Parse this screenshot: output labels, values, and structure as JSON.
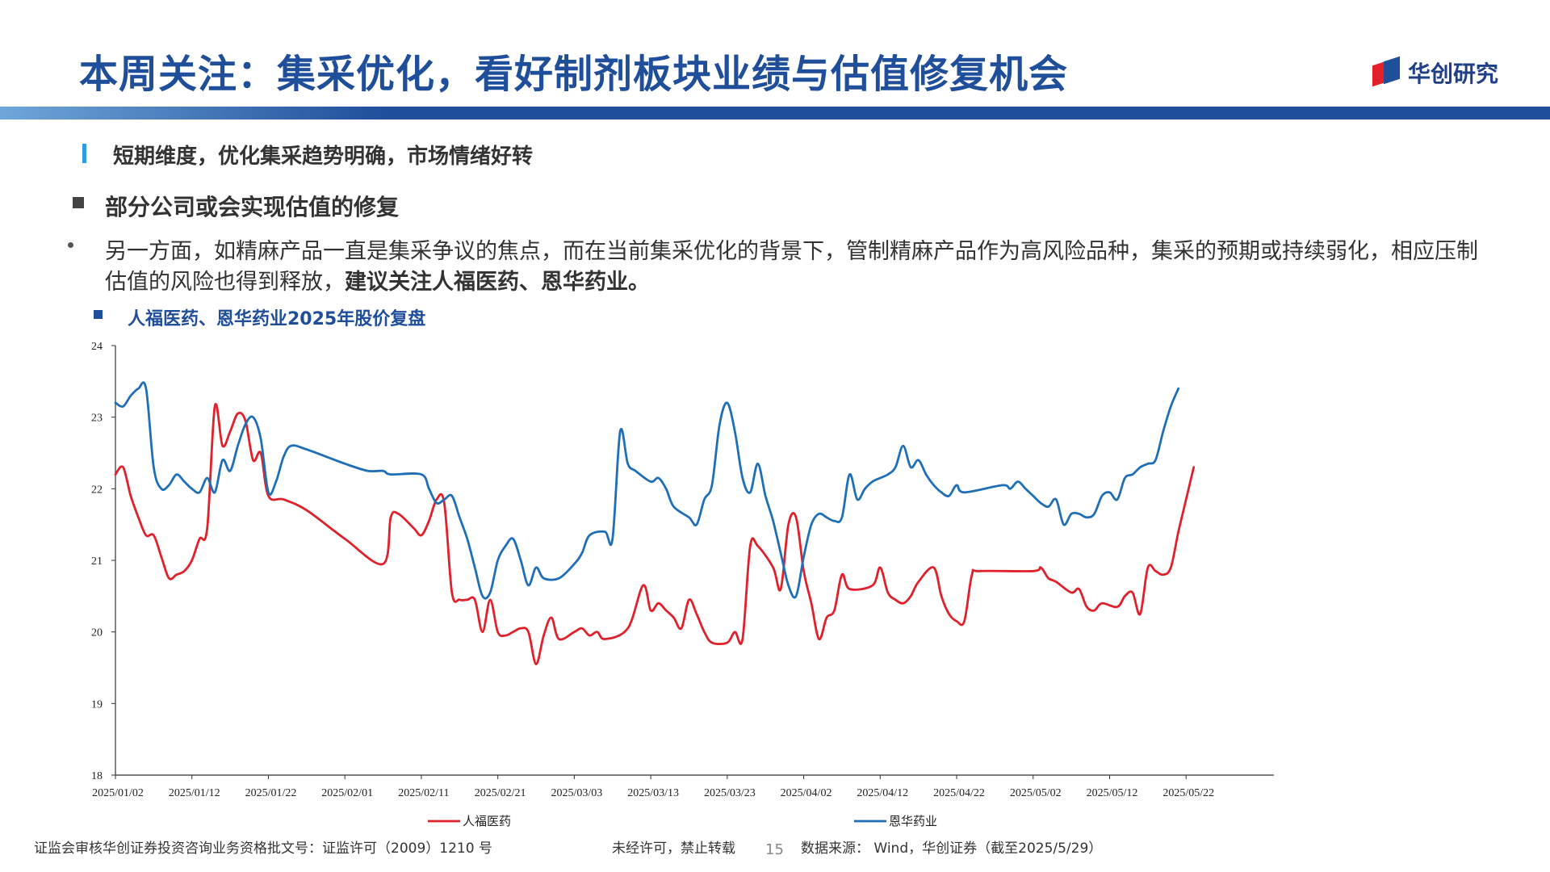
{
  "header": {
    "title": "本周关注：集采优化，看好制剂板块业绩与估值修复机会",
    "logo_text": "华创研究"
  },
  "section": {
    "heading": "短期维度，优化集采趋势明确，市场情绪好转",
    "subheading": "部分公司或会实现估值的修复",
    "paragraph_plain": "另一方面，如精麻产品一直是集采争议的焦点，而在当前集采优化的背景下，管制精麻产品作为高风险品种，集采的预期或持续弱化，相应压制估值的风险也得到释放，",
    "paragraph_bold": "建议关注人福医药、恩华药业。"
  },
  "chart_title": "人福医药、恩华药业2025年股价复盘",
  "chart_data": {
    "type": "line",
    "title": "人福医药、恩华药业2025年股价复盘",
    "ylim": [
      18,
      24
    ],
    "yticks": [
      "18",
      "19",
      "20",
      "21",
      "22",
      "23",
      "24"
    ],
    "x_range_days": [
      0,
      148
    ],
    "xtick_days": [
      0,
      10,
      20,
      30,
      40,
      50,
      60,
      70,
      80,
      90,
      100,
      110,
      120,
      130,
      140
    ],
    "xtick_labels": [
      "2025/01/02",
      "2025/01/12",
      "2025/01/22",
      "2025/02/01",
      "2025/02/11",
      "2025/02/21",
      "2025/03/03",
      "2025/03/13",
      "2025/03/23",
      "2025/04/02",
      "2025/04/12",
      "2025/04/22",
      "2025/05/02",
      "2025/05/12",
      "2025/05/22"
    ],
    "legend_position": "bottom",
    "series": [
      {
        "name": "人福医药",
        "color": "#e0202a",
        "points": [
          [
            0,
            22.2
          ],
          [
            1,
            22.3
          ],
          [
            2,
            21.9
          ],
          [
            3,
            21.6
          ],
          [
            4,
            21.35
          ],
          [
            5,
            21.35
          ],
          [
            6,
            21.05
          ],
          [
            7,
            20.75
          ],
          [
            8,
            20.8
          ],
          [
            9,
            20.85
          ],
          [
            10,
            21.0
          ],
          [
            11,
            21.3
          ],
          [
            12,
            21.45
          ],
          [
            13,
            23.15
          ],
          [
            14,
            22.6
          ],
          [
            15,
            22.8
          ],
          [
            16,
            23.05
          ],
          [
            17,
            22.95
          ],
          [
            18,
            22.4
          ],
          [
            19,
            22.5
          ],
          [
            20,
            21.9
          ],
          [
            22,
            21.85
          ],
          [
            25,
            21.7
          ],
          [
            30,
            21.3
          ],
          [
            35,
            20.95
          ],
          [
            36,
            21.6
          ],
          [
            37,
            21.65
          ],
          [
            39,
            21.45
          ],
          [
            40,
            21.35
          ],
          [
            41,
            21.55
          ],
          [
            42,
            21.85
          ],
          [
            43,
            21.8
          ],
          [
            44,
            20.55
          ],
          [
            45,
            20.45
          ],
          [
            46,
            20.45
          ],
          [
            47,
            20.45
          ],
          [
            48,
            20.0
          ],
          [
            49,
            20.45
          ],
          [
            50,
            20.0
          ],
          [
            51,
            19.95
          ],
          [
            52,
            20.0
          ],
          [
            53,
            20.05
          ],
          [
            54,
            20.0
          ],
          [
            55,
            19.55
          ],
          [
            56,
            19.95
          ],
          [
            57,
            20.2
          ],
          [
            58,
            19.9
          ],
          [
            60,
            20.0
          ],
          [
            61,
            20.05
          ],
          [
            62,
            19.95
          ],
          [
            63,
            20.0
          ],
          [
            64,
            19.9
          ],
          [
            67,
            20.05
          ],
          [
            69,
            20.65
          ],
          [
            70,
            20.3
          ],
          [
            71,
            20.4
          ],
          [
            72,
            20.3
          ],
          [
            73,
            20.2
          ],
          [
            74,
            20.05
          ],
          [
            75,
            20.45
          ],
          [
            76,
            20.25
          ],
          [
            77,
            20.0
          ],
          [
            78,
            19.85
          ],
          [
            80,
            19.85
          ],
          [
            81,
            20.0
          ],
          [
            82,
            19.9
          ],
          [
            83,
            21.2
          ],
          [
            84,
            21.2
          ],
          [
            86,
            20.9
          ],
          [
            87,
            20.6
          ],
          [
            88,
            21.5
          ],
          [
            89,
            21.6
          ],
          [
            90,
            20.85
          ],
          [
            91,
            20.4
          ],
          [
            92,
            19.9
          ],
          [
            93,
            20.2
          ],
          [
            94,
            20.3
          ],
          [
            95,
            20.8
          ],
          [
            96,
            20.6
          ],
          [
            99,
            20.65
          ],
          [
            100,
            20.9
          ],
          [
            101,
            20.55
          ],
          [
            102,
            20.45
          ],
          [
            103,
            20.4
          ],
          [
            104,
            20.5
          ],
          [
            105,
            20.7
          ],
          [
            107,
            20.9
          ],
          [
            108,
            20.5
          ],
          [
            109,
            20.25
          ],
          [
            110,
            20.15
          ],
          [
            111,
            20.15
          ],
          [
            112,
            20.8
          ],
          [
            113,
            20.85
          ],
          [
            120,
            20.85
          ],
          [
            121,
            20.9
          ],
          [
            122,
            20.75
          ],
          [
            123,
            20.7
          ],
          [
            125,
            20.55
          ],
          [
            126,
            20.6
          ],
          [
            127,
            20.35
          ],
          [
            128,
            20.3
          ],
          [
            129,
            20.4
          ],
          [
            131,
            20.35
          ],
          [
            132,
            20.5
          ],
          [
            133,
            20.55
          ],
          [
            134,
            20.25
          ],
          [
            135,
            20.9
          ],
          [
            136,
            20.85
          ],
          [
            137,
            20.8
          ],
          [
            138,
            20.9
          ],
          [
            139,
            21.4
          ],
          [
            140,
            21.85
          ],
          [
            141,
            22.3
          ]
        ]
      },
      {
        "name": "恩华药业",
        "color": "#1f6fb8",
        "points": [
          [
            0,
            23.2
          ],
          [
            1,
            23.15
          ],
          [
            2,
            23.3
          ],
          [
            3,
            23.4
          ],
          [
            4,
            23.4
          ],
          [
            5,
            22.3
          ],
          [
            6,
            22.0
          ],
          [
            7,
            22.05
          ],
          [
            8,
            22.2
          ],
          [
            9,
            22.1
          ],
          [
            10,
            22.0
          ],
          [
            11,
            21.95
          ],
          [
            12,
            22.15
          ],
          [
            13,
            21.95
          ],
          [
            14,
            22.4
          ],
          [
            15,
            22.25
          ],
          [
            16,
            22.6
          ],
          [
            17,
            22.9
          ],
          [
            18,
            23.0
          ],
          [
            19,
            22.7
          ],
          [
            20,
            21.95
          ],
          [
            21,
            22.1
          ],
          [
            22,
            22.45
          ],
          [
            23,
            22.6
          ],
          [
            25,
            22.55
          ],
          [
            30,
            22.35
          ],
          [
            33,
            22.25
          ],
          [
            35,
            22.25
          ],
          [
            36,
            22.2
          ],
          [
            40,
            22.2
          ],
          [
            41,
            22.0
          ],
          [
            42,
            21.8
          ],
          [
            43,
            21.85
          ],
          [
            44,
            21.9
          ],
          [
            45,
            21.6
          ],
          [
            46,
            21.3
          ],
          [
            47,
            20.9
          ],
          [
            48,
            20.5
          ],
          [
            49,
            20.55
          ],
          [
            50,
            21.0
          ],
          [
            51,
            21.2
          ],
          [
            52,
            21.3
          ],
          [
            53,
            21.0
          ],
          [
            54,
            20.65
          ],
          [
            55,
            20.9
          ],
          [
            56,
            20.75
          ],
          [
            58,
            20.75
          ],
          [
            60,
            20.95
          ],
          [
            61,
            21.1
          ],
          [
            62,
            21.35
          ],
          [
            64,
            21.4
          ],
          [
            65,
            21.3
          ],
          [
            66,
            22.8
          ],
          [
            67,
            22.35
          ],
          [
            68,
            22.25
          ],
          [
            70,
            22.1
          ],
          [
            71,
            22.15
          ],
          [
            72,
            22.0
          ],
          [
            73,
            21.75
          ],
          [
            75,
            21.6
          ],
          [
            76,
            21.5
          ],
          [
            77,
            21.85
          ],
          [
            78,
            22.05
          ],
          [
            79,
            22.9
          ],
          [
            80,
            23.2
          ],
          [
            81,
            22.8
          ],
          [
            82,
            22.15
          ],
          [
            83,
            21.95
          ],
          [
            84,
            22.35
          ],
          [
            85,
            21.9
          ],
          [
            86,
            21.55
          ],
          [
            87,
            21.1
          ],
          [
            88,
            20.65
          ],
          [
            89,
            20.5
          ],
          [
            90,
            21.05
          ],
          [
            91,
            21.5
          ],
          [
            92,
            21.65
          ],
          [
            93,
            21.6
          ],
          [
            94,
            21.55
          ],
          [
            95,
            21.6
          ],
          [
            96,
            22.2
          ],
          [
            97,
            21.85
          ],
          [
            98,
            22.0
          ],
          [
            99,
            22.1
          ],
          [
            100,
            22.15
          ],
          [
            101,
            22.2
          ],
          [
            102,
            22.3
          ],
          [
            103,
            22.6
          ],
          [
            104,
            22.3
          ],
          [
            105,
            22.4
          ],
          [
            106,
            22.2
          ],
          [
            107,
            22.05
          ],
          [
            108,
            21.95
          ],
          [
            109,
            21.9
          ],
          [
            110,
            22.05
          ],
          [
            111,
            21.95
          ],
          [
            116,
            22.05
          ],
          [
            117,
            22.0
          ],
          [
            118,
            22.1
          ],
          [
            119,
            22.0
          ],
          [
            120,
            21.9
          ],
          [
            121,
            21.8
          ],
          [
            122,
            21.75
          ],
          [
            123,
            21.85
          ],
          [
            124,
            21.5
          ],
          [
            125,
            21.65
          ],
          [
            126,
            21.65
          ],
          [
            127,
            21.6
          ],
          [
            128,
            21.65
          ],
          [
            129,
            21.9
          ],
          [
            130,
            21.95
          ],
          [
            131,
            21.85
          ],
          [
            132,
            22.15
          ],
          [
            133,
            22.2
          ],
          [
            134,
            22.3
          ],
          [
            135,
            22.35
          ],
          [
            136,
            22.4
          ],
          [
            137,
            22.8
          ],
          [
            138,
            23.15
          ],
          [
            139,
            23.4
          ]
        ]
      }
    ]
  },
  "footer": {
    "license": "证监会审核华创证券投资咨询业务资格批文号：证监许可（2009）1210 号",
    "notice": "未经许可，禁止转载",
    "page_number": "15",
    "source": "数据来源： Wind，华创证券（截至2025/5/29）"
  }
}
